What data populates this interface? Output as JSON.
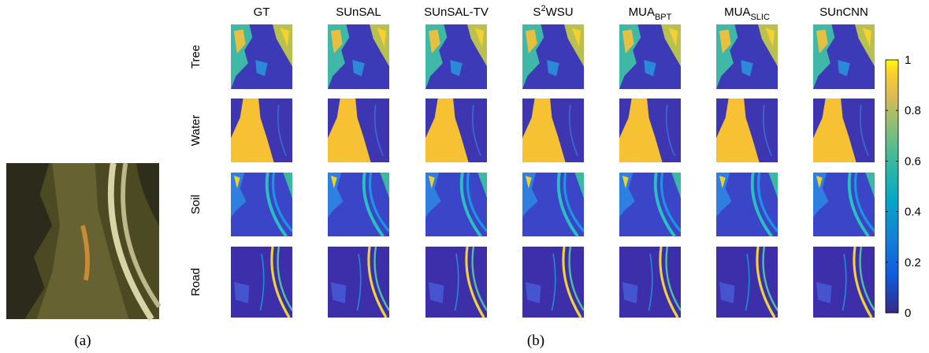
{
  "figure": {
    "panel_a": {
      "caption": "(a)"
    },
    "panel_b": {
      "caption": "(b)",
      "columns": [
        "GT",
        "SUnSAL",
        "SUnSAL-TV",
        {
          "pre": "S",
          "sup": "2",
          "post": "WSU"
        },
        {
          "pre": "MUA",
          "sub": "BPT"
        },
        {
          "pre": "MUA",
          "sub": "SLIC"
        },
        "SUnCNN"
      ],
      "rows": [
        "Tree",
        "Water",
        "Soil",
        "Road"
      ],
      "colorbar": {
        "lim": [
          0,
          1
        ],
        "ticks": [
          0,
          0.2,
          0.4,
          0.6,
          0.8,
          1
        ]
      }
    }
  }
}
